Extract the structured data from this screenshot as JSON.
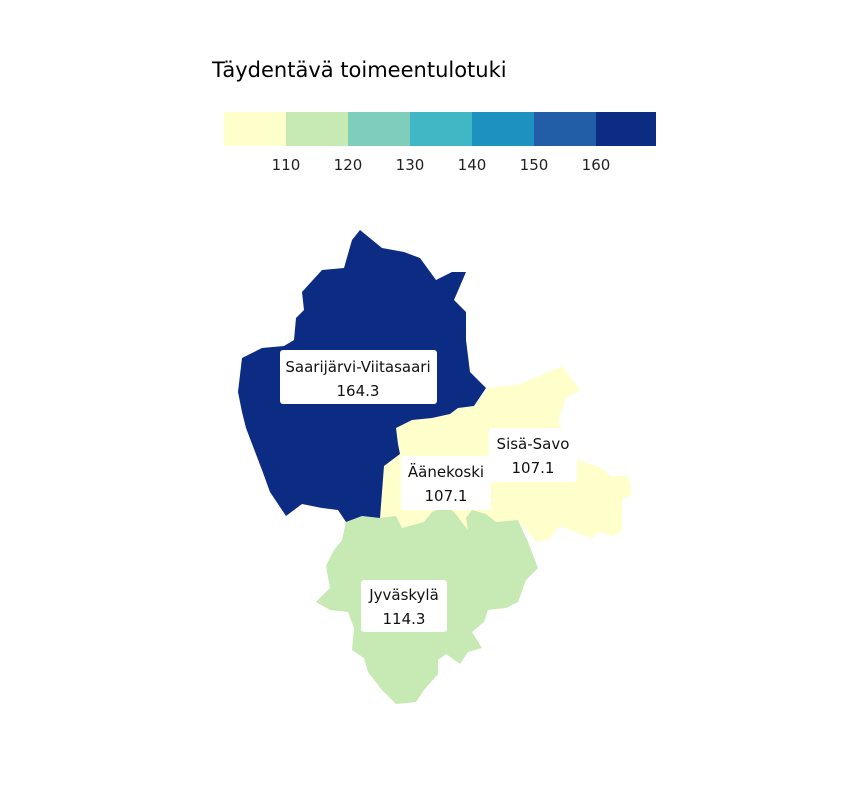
{
  "title": "Täydentävä toimeentulotuki",
  "legend": {
    "colors": [
      "#ffffcc",
      "#c7e9b4",
      "#7fcdbb",
      "#41b6c4",
      "#1d91c0",
      "#225ea8",
      "#0c2c84"
    ],
    "ticks": [
      "110",
      "120",
      "130",
      "140",
      "150",
      "160"
    ]
  },
  "regions": [
    {
      "name": "Saarijärvi-Viitasaari",
      "value": "164.3",
      "color": "#0c2c84"
    },
    {
      "name": "Sisä-Savo",
      "value": "107.1",
      "color": "#ffffcc"
    },
    {
      "name": "Äänekoski",
      "value": "107.1",
      "color": "#ffffcc"
    },
    {
      "name": "Jyväskylä",
      "value": "114.3",
      "color": "#c7e9b4"
    }
  ]
}
